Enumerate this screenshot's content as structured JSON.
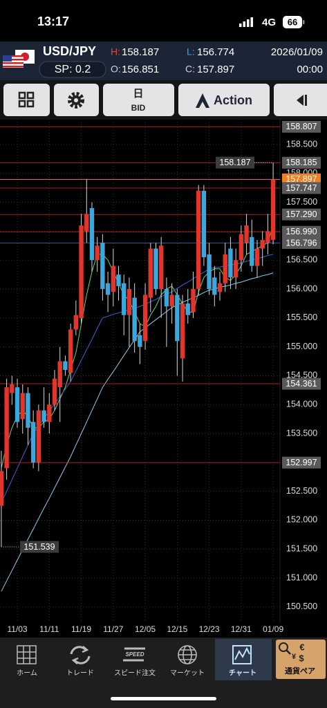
{
  "status_bar": {
    "time": "13:17",
    "network": "4G",
    "battery": "66"
  },
  "header": {
    "pair": "USD/JPY",
    "spread": "SP: 0.2",
    "high_label": "H:",
    "high": "158.187",
    "low_label": "L:",
    "low": "156.774",
    "open_label": "O:",
    "open": "156.851",
    "close_label": "C:",
    "close": "157.897",
    "date": "2026/01/09",
    "time": "00:00"
  },
  "toolbar": {
    "period": "日",
    "price_side": "BID",
    "action": "Action"
  },
  "chart_data": {
    "type": "candlestick",
    "categories": [
      null,
      null,
      null,
      "11/03",
      null,
      null,
      null,
      null,
      null,
      "11/11",
      null,
      null,
      null,
      null,
      null,
      "11/19",
      null,
      null,
      null,
      null,
      null,
      "11/27",
      null,
      null,
      null,
      null,
      null,
      "12/05",
      null,
      null,
      null,
      null,
      null,
      "12/15",
      null,
      null,
      null,
      null,
      null,
      "12/23",
      null,
      null,
      null,
      null,
      null,
      "12/31",
      null,
      null,
      null,
      null,
      null,
      "01/09"
    ],
    "open": [
      152.25,
      152.9,
      154.2,
      154.3,
      153.75,
      154.2,
      153.7,
      153.0,
      153.9,
      153.7,
      154.0,
      154.3,
      154.75,
      154.55,
      155.3,
      155.5,
      157.0,
      157.4,
      156.5,
      156.8,
      156.1,
      155.95,
      156.25,
      156.1,
      155.55,
      155.85,
      155.2,
      155.1,
      155.85,
      156.7,
      156.0,
      156.0,
      155.7,
      155.9,
      154.8,
      155.75,
      155.6,
      156.0,
      157.7,
      156.6,
      156.2,
      155.95,
      156.1,
      156.7,
      156.2,
      156.5,
      156.8,
      156.9,
      156.4,
      156.7,
      156.8,
      156.851
    ],
    "high": [
      153.2,
      154.45,
      154.5,
      154.45,
      154.35,
      154.3,
      153.9,
      154.0,
      154.3,
      154.2,
      154.6,
      155.0,
      154.85,
      155.4,
      155.8,
      157.3,
      157.9,
      157.5,
      156.9,
      156.95,
      156.3,
      156.7,
      156.4,
      156.25,
      156.2,
      156.1,
      155.4,
      156.1,
      156.8,
      156.8,
      156.9,
      156.2,
      156.1,
      156.0,
      155.9,
      156.0,
      156.3,
      157.8,
      157.8,
      156.8,
      156.4,
      156.3,
      156.8,
      156.9,
      156.7,
      157.1,
      157.3,
      157.2,
      156.85,
      157.0,
      157.3,
      158.187
    ],
    "low": [
      151.539,
      152.7,
      154.0,
      153.6,
      153.5,
      153.3,
      152.9,
      152.85,
      153.6,
      153.5,
      153.9,
      153.7,
      154.5,
      154.4,
      155.2,
      155.4,
      156.8,
      156.3,
      156.3,
      155.8,
      155.6,
      155.7,
      155.8,
      155.2,
      155.0,
      154.9,
      154.7,
      154.95,
      155.6,
      155.9,
      155.5,
      155.0,
      155.4,
      154.5,
      154.4,
      155.4,
      155.5,
      155.9,
      156.4,
      155.9,
      155.7,
      155.8,
      155.95,
      156.0,
      156.0,
      156.3,
      156.6,
      156.3,
      156.2,
      156.4,
      156.6,
      156.774
    ],
    "close": [
      152.85,
      154.3,
      154.35,
      153.7,
      154.2,
      153.6,
      153.0,
      153.9,
      153.7,
      154.0,
      154.45,
      154.75,
      154.6,
      155.3,
      155.55,
      157.1,
      157.3,
      156.5,
      156.75,
      156.0,
      155.9,
      156.4,
      156.05,
      155.55,
      156.0,
      155.1,
      155.0,
      155.9,
      156.7,
      156.0,
      156.75,
      155.7,
      155.9,
      155.1,
      155.75,
      155.55,
      156.0,
      157.7,
      156.55,
      156.0,
      155.9,
      156.1,
      156.6,
      156.2,
      156.5,
      156.95,
      157.1,
      156.4,
      156.7,
      156.85,
      157.0,
      157.897
    ],
    "up_color": "#e2352c",
    "down_color": "#3aa8dc",
    "series": [
      {
        "color": "#6fd36a",
        "values": [
          152.9,
          153.3,
          153.6,
          153.8,
          153.9,
          153.8,
          153.6,
          153.6,
          153.7,
          153.75,
          153.9,
          154.1,
          154.3,
          154.6,
          154.9,
          155.4,
          155.9,
          156.3,
          156.6,
          156.6,
          156.5,
          156.3,
          156.1,
          155.9,
          155.8,
          155.6,
          155.4,
          155.35,
          155.55,
          155.7,
          155.9,
          156.0,
          156.05,
          155.9,
          155.75,
          155.6,
          155.6,
          155.95,
          156.2,
          156.3,
          156.35,
          156.35,
          156.2,
          156.15,
          156.25,
          156.4,
          156.6,
          156.65,
          156.7,
          156.75,
          156.8,
          157.1
        ]
      },
      {
        "color": "#3f63d8",
        "values": [
          152.3,
          152.5,
          152.7,
          152.9,
          153.1,
          153.3,
          153.5,
          153.63,
          153.76,
          153.89,
          154.01,
          154.14,
          154.27,
          154.4,
          154.58,
          154.77,
          154.95,
          155.13,
          155.32,
          155.5,
          155.53,
          155.56,
          155.59,
          155.61,
          155.64,
          155.67,
          155.7,
          155.74,
          155.78,
          155.82,
          155.87,
          155.91,
          155.95,
          156.01,
          156.07,
          156.12,
          156.18,
          156.24,
          156.29,
          156.35,
          156.37,
          156.38,
          156.4,
          156.42,
          156.43,
          156.45,
          156.48,
          156.5,
          156.53,
          156.55,
          156.58,
          156.6
        ]
      },
      {
        "color": "#8fd0ee",
        "values": [
          150.77,
          150.95,
          151.13,
          151.31,
          151.49,
          151.67,
          151.85,
          152.03,
          152.21,
          152.38,
          152.56,
          152.74,
          152.92,
          153.1,
          153.3,
          153.5,
          153.7,
          153.9,
          154.1,
          154.3,
          154.44,
          154.57,
          154.71,
          154.85,
          154.99,
          155.12,
          155.26,
          155.33,
          155.4,
          155.47,
          155.54,
          155.61,
          155.68,
          155.72,
          155.77,
          155.81,
          155.85,
          155.89,
          155.94,
          155.98,
          156.0,
          156.03,
          156.05,
          156.07,
          156.1,
          156.12,
          156.15,
          156.18,
          156.2,
          156.23,
          156.25,
          156.28
        ]
      }
    ],
    "ylim": [
      150.235,
      158.943
    ],
    "yticks": [
      {
        "value": 150.5,
        "label": "150.500"
      },
      {
        "value": 151.0,
        "label": "151.000"
      },
      {
        "value": 151.5,
        "label": "151.500"
      },
      {
        "value": 152.0,
        "label": "152.000"
      },
      {
        "value": 152.5,
        "label": "152.500"
      },
      {
        "value": 153.0,
        "label": "153.000"
      },
      {
        "value": 153.5,
        "label": "153.500"
      },
      {
        "value": 154.0,
        "label": "154.000"
      },
      {
        "value": 154.5,
        "label": "154.500"
      },
      {
        "value": 155.0,
        "label": "155.000"
      },
      {
        "value": 155.5,
        "label": "155.500"
      },
      {
        "value": 156.0,
        "label": "156.000"
      },
      {
        "value": 156.5,
        "label": "156.500"
      },
      {
        "value": 157.0,
        "label": "157.000"
      },
      {
        "value": 157.5,
        "label": "157.500"
      },
      {
        "value": 158.0,
        "label": "158.000"
      },
      {
        "value": 158.5,
        "label": "158.500"
      }
    ],
    "grid": true,
    "price_lines": [
      {
        "value": 158.807,
        "color": "#a82222"
      },
      {
        "value": 158.185,
        "color": "#a82222"
      },
      {
        "value": 157.897,
        "color": "#d9742a",
        "box_color": "#f07f22"
      },
      {
        "value": 157.747,
        "color": "#a82222"
      },
      {
        "value": 157.29,
        "label": "157.290",
        "color": "#a82222"
      },
      {
        "value": 156.99,
        "label": "156.990",
        "color": "#a82222"
      },
      {
        "value": 156.796,
        "color": "#3450b0"
      },
      {
        "value": 154.361,
        "color": "#a82222"
      },
      {
        "value": 152.997,
        "color": "#a82222"
      }
    ]
  },
  "bottom_nav": {
    "items": [
      "ホーム",
      "トレード",
      "スピード注文",
      "マーケット",
      "チャート",
      "通貨ペア"
    ],
    "speed_icon": "SPEED"
  }
}
